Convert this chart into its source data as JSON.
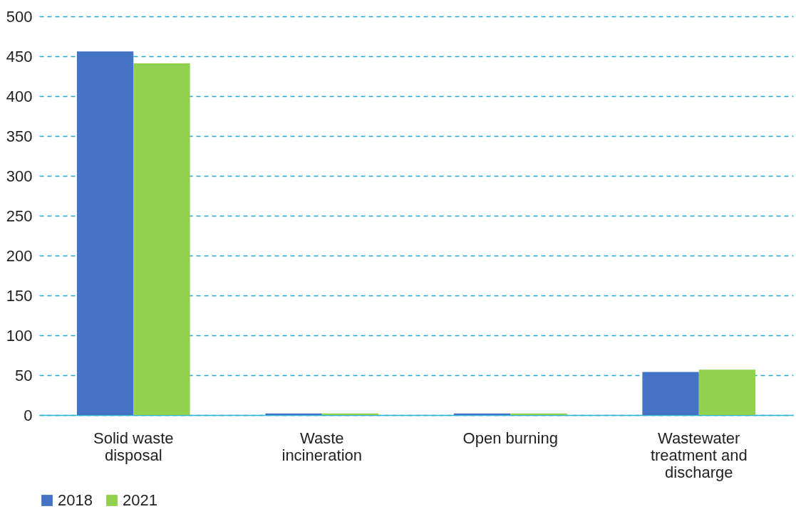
{
  "chart_data": {
    "type": "bar",
    "categories": [
      "Solid waste disposal",
      "Waste incineration",
      "Open burning",
      "Wastewater treatment and discharge"
    ],
    "series": [
      {
        "name": "2018",
        "color": "#4472c4",
        "values": [
          456,
          2,
          2,
          54
        ]
      },
      {
        "name": "2021",
        "color": "#92d050",
        "values": [
          441,
          2,
          2,
          57
        ]
      }
    ],
    "ylim": [
      0,
      500
    ],
    "yticks": [
      0,
      50,
      100,
      150,
      200,
      250,
      300,
      350,
      400,
      450,
      500
    ],
    "grid": "y",
    "legend": "bottom"
  }
}
